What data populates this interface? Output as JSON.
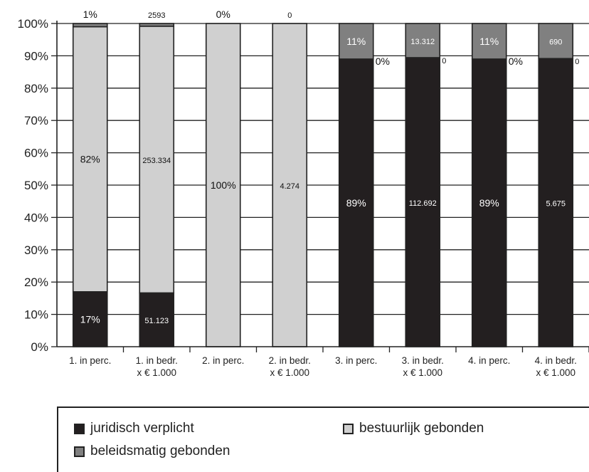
{
  "chart_data": {
    "type": "bar",
    "stacked": true,
    "normalized": true,
    "categories": [
      [
        "1. in perc.",
        ""
      ],
      [
        "1. in bedr.",
        "x € 1.000"
      ],
      [
        "2. in perc.",
        ""
      ],
      [
        "2. in bedr.",
        "x € 1.000"
      ],
      [
        "3. in perc.",
        ""
      ],
      [
        "3. in bedr.",
        "x € 1.000"
      ],
      [
        "4. in perc.",
        ""
      ],
      [
        "4. in bedr.",
        "x € 1.000"
      ]
    ],
    "series": [
      {
        "name": "juridisch verplicht",
        "color": "#231f20",
        "values": [
          17,
          51123,
          0,
          0,
          89,
          112692,
          89,
          5675
        ],
        "labels": [
          "17%",
          "51.123",
          "",
          "",
          "89%",
          "112.692",
          "89%",
          "5.675"
        ]
      },
      {
        "name": "bestuurlijk gebonden",
        "color": "#d0d0d0",
        "values": [
          82,
          253334,
          100,
          4274,
          0,
          0,
          0,
          0
        ],
        "labels": [
          "82%",
          "253.334",
          "100%",
          "4.274",
          "0%",
          "0",
          "0%",
          "0"
        ]
      },
      {
        "name": "beleidsmatig gebonden",
        "color": "#808080",
        "values": [
          1,
          2593,
          0,
          0,
          11,
          13312,
          11,
          690
        ],
        "labels": [
          "1%",
          "2593",
          "0%",
          "0",
          "11%",
          "13.312",
          "11%",
          "690"
        ]
      }
    ],
    "ylim": [
      0,
      100
    ],
    "yticks": [
      "0%",
      "10%",
      "20%",
      "30%",
      "40%",
      "50%",
      "60%",
      "70%",
      "80%",
      "90%",
      "100%"
    ],
    "grid": true,
    "legend_position": "bottom"
  }
}
